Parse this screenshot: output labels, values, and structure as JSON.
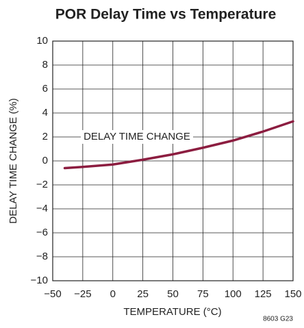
{
  "chart_data": {
    "type": "line",
    "title": "POR Delay Time vs Temperature",
    "xlabel": "TEMPERATURE (°C)",
    "ylabel": "DELAY TIME CHANGE (%)",
    "annotations": [
      "8603 G23"
    ],
    "x": [
      -40,
      -25,
      0,
      25,
      50,
      75,
      100,
      125,
      150
    ],
    "series": [
      {
        "name": "DELAY TIME CHANGE",
        "color": "#8c1d40",
        "values": [
          -0.6,
          -0.5,
          -0.3,
          0.1,
          0.55,
          1.1,
          1.7,
          2.45,
          3.3
        ]
      }
    ],
    "xlim": [
      -50,
      150
    ],
    "xticks": [
      {
        "value": -50,
        "label": "−50"
      },
      {
        "value": -25,
        "label": "−25"
      },
      0,
      25,
      50,
      75,
      100,
      125,
      150
    ],
    "ylim": [
      -10,
      10
    ],
    "yticks": [
      {
        "value": -10,
        "label": "−10"
      },
      {
        "value": -8,
        "label": "−8"
      },
      {
        "value": -6,
        "label": "−6"
      },
      {
        "value": -4,
        "label": "−4"
      },
      {
        "value": -2,
        "label": "−2"
      },
      0,
      2,
      4,
      6,
      8,
      10
    ],
    "grid": true
  }
}
